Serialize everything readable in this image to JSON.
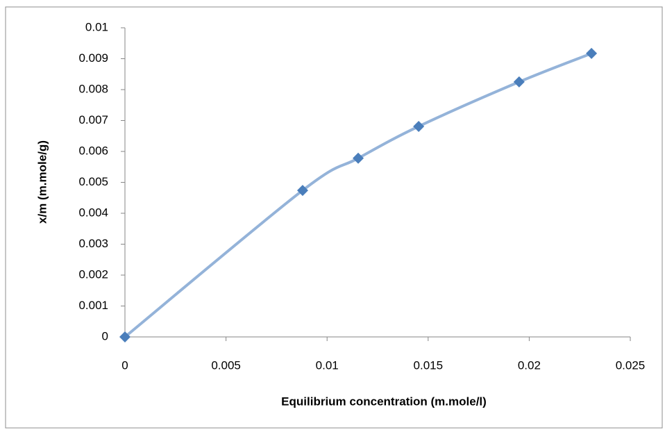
{
  "chart_data": {
    "type": "scatter",
    "x_label": "Equilibrium concentration (m.mole/l)",
    "y_label": "x/m (m.mole/g)",
    "x": [
      0,
      0.00879,
      0.01154,
      0.01453,
      0.0195,
      0.02308
    ],
    "series": [
      {
        "color": "#4a7ebb",
        "line_color": "#94b3d9",
        "values": [
          0,
          0.00474,
          0.00578,
          0.00681,
          0.00825,
          0.00917
        ]
      }
    ],
    "xlim": [
      0,
      0.025
    ],
    "xticks": [
      0,
      0.005,
      0.01,
      0.015,
      0.02,
      0.025
    ],
    "ylim": [
      0,
      0.01
    ],
    "yticks": [
      0,
      0.001,
      0.002,
      0.003,
      0.004,
      0.005,
      0.006,
      0.007,
      0.008,
      0.009,
      0.01
    ],
    "grid": false,
    "smooth": true
  }
}
